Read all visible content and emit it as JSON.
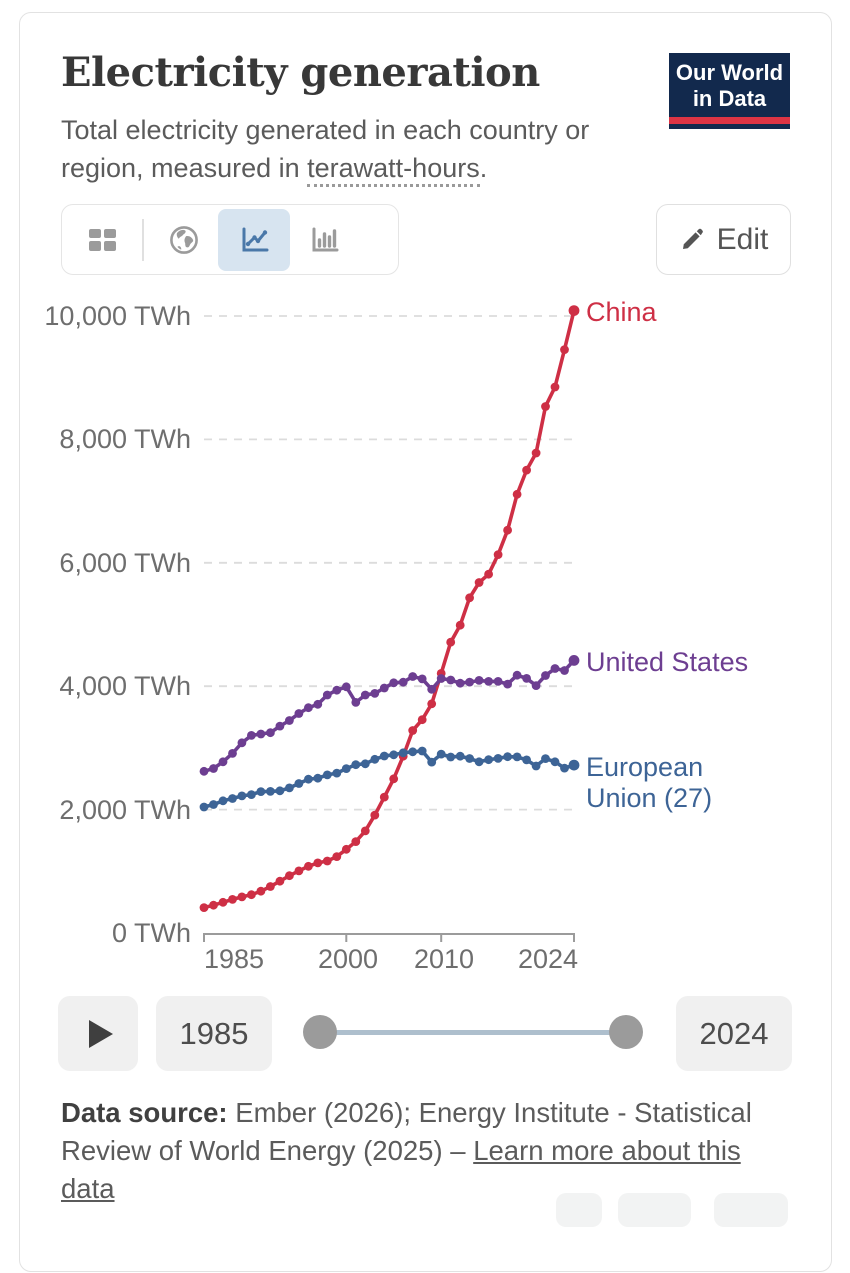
{
  "header": {
    "title": "Electricity generation",
    "subtitle_prefix": "Total electricity generated in each country or region, measured in ",
    "subtitle_term": "terawatt-hours",
    "subtitle_suffix": ".",
    "logo_line1": "Our World",
    "logo_line2": "in Data"
  },
  "toolbar": {
    "views": [
      "table",
      "map",
      "line-chart",
      "bar-chart"
    ],
    "active_view": "line-chart",
    "edit_label": "Edit"
  },
  "colors": {
    "china": "#CE2F45",
    "united_states": "#6D3E91",
    "european_union": "#3D6496",
    "active_view_bg": "#D7E4F0",
    "logo_bg": "#12294D",
    "logo_underline": "#DD3444"
  },
  "chart_data": {
    "type": "line",
    "title": "Electricity generation",
    "unit": "TWh",
    "grid": "dashed horizontal",
    "legend_position": "end-of-line labels",
    "xlim": [
      1985,
      2024
    ],
    "ylim": [
      0,
      10000
    ],
    "y_gridlines": [
      2000,
      4000,
      6000,
      8000,
      10000
    ],
    "x_ticks": [
      1985,
      2000,
      2010,
      2024
    ],
    "x": [
      1985,
      1986,
      1987,
      1988,
      1989,
      1990,
      1991,
      1992,
      1993,
      1994,
      1995,
      1996,
      1997,
      1998,
      1999,
      2000,
      2001,
      2002,
      2003,
      2004,
      2005,
      2006,
      2007,
      2008,
      2009,
      2010,
      2011,
      2012,
      2013,
      2014,
      2015,
      2016,
      2017,
      2018,
      2019,
      2020,
      2021,
      2022,
      2023,
      2024
    ],
    "series": [
      {
        "name": "China",
        "color": "#CE2F45",
        "values": [
          411,
          450,
          497,
          545,
          585,
          621,
          678,
          754,
          839,
          928,
          1007,
          1081,
          1136,
          1167,
          1239,
          1356,
          1481,
          1654,
          1911,
          2203,
          2500,
          2866,
          3282,
          3457,
          3714,
          4207,
          4713,
          4988,
          5432,
          5680,
          5815,
          6133,
          6529,
          7111,
          7503,
          7779,
          8534,
          8849,
          9456,
          10087
        ]
      },
      {
        "name": "United States",
        "color": "#6D3E91",
        "values": [
          2621,
          2666,
          2775,
          2911,
          3082,
          3203,
          3226,
          3247,
          3353,
          3444,
          3558,
          3652,
          3707,
          3857,
          3935,
          3990,
          3737,
          3858,
          3883,
          3971,
          4055,
          4065,
          4157,
          4119,
          3950,
          4125,
          4100,
          4048,
          4066,
          4094,
          4078,
          4077,
          4034,
          4178,
          4127,
          4009,
          4173,
          4287,
          4254,
          4418
        ]
      },
      {
        "name": "European Union (27)",
        "color": "#3D6496",
        "values": [
          2042,
          2082,
          2143,
          2180,
          2222,
          2243,
          2292,
          2295,
          2305,
          2352,
          2423,
          2493,
          2509,
          2562,
          2592,
          2665,
          2727,
          2743,
          2815,
          2869,
          2888,
          2920,
          2937,
          2949,
          2770,
          2900,
          2853,
          2866,
          2828,
          2774,
          2809,
          2830,
          2858,
          2854,
          2806,
          2707,
          2826,
          2774,
          2672,
          2722
        ]
      }
    ]
  },
  "axis": {
    "y_labels": [
      "10,000 TWh",
      "8,000 TWh",
      "6,000 TWh",
      "4,000 TWh",
      "2,000 TWh",
      "0 TWh"
    ],
    "x_labels": [
      "1985",
      "2000",
      "2010",
      "2024"
    ]
  },
  "timeline": {
    "start_year": "1985",
    "end_year": "2024"
  },
  "footer": {
    "source_bold": "Data source:",
    "source_text": " Ember (2026); Energy Institute - Statistical Review of World Energy (2025) – ",
    "link_text": "Learn more about this data"
  }
}
